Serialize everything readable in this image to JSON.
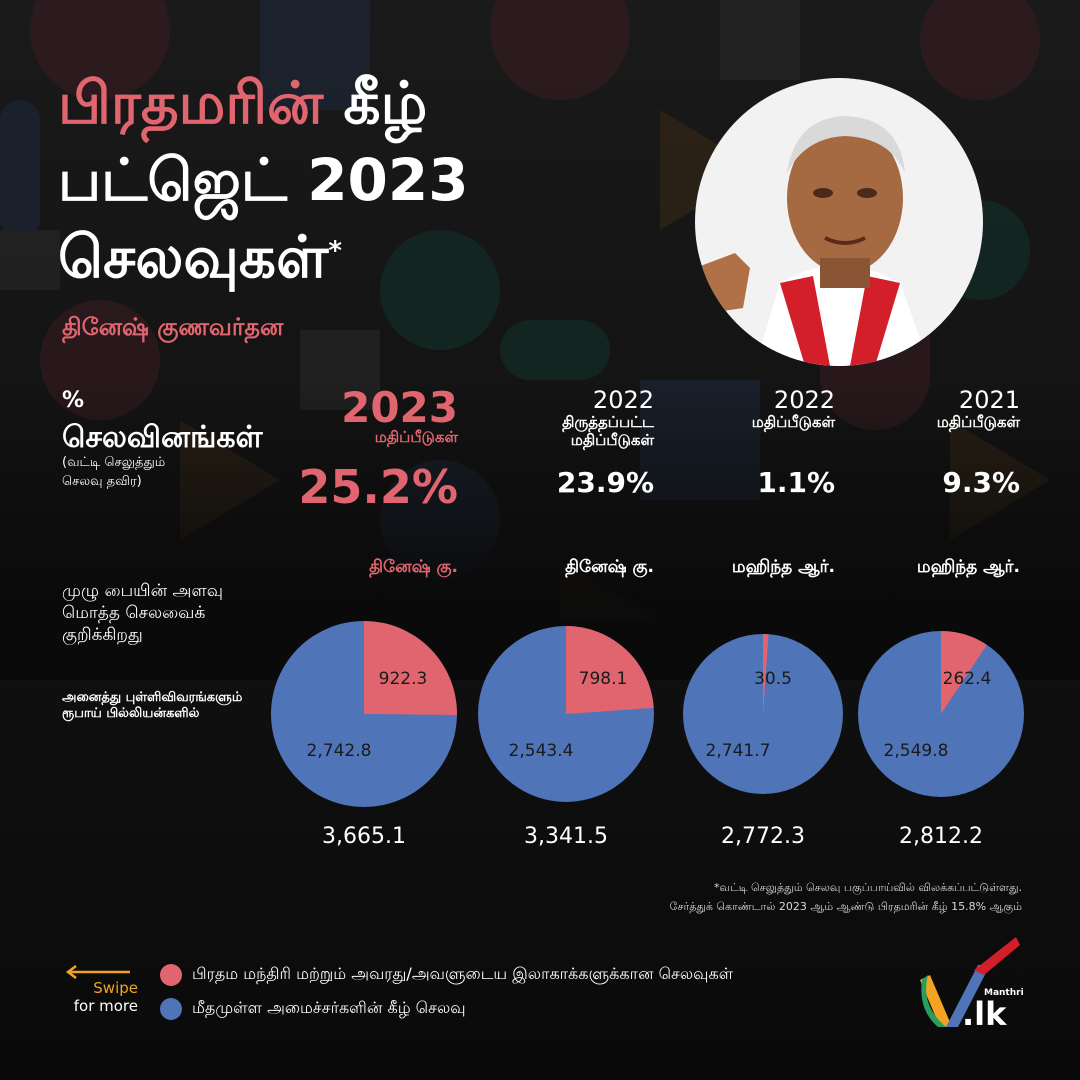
{
  "title": {
    "line1_accent": "பிரதமரின்",
    "line1_rest": " கீழ்",
    "line2": "பட்ஜெட் 2023",
    "line3": "செலவுகள்",
    "asterisk": "*"
  },
  "subtitle": "தினேஷ் குணவர்தன",
  "expenditure_label": {
    "percent_sign": "%",
    "label": "செலவினங்கள்",
    "note": "(வட்டி செலுத்தும் செலவு தவிர)"
  },
  "columns": [
    {
      "year": "2023",
      "sub": "மதிப்பீடுகள்",
      "pct": "25.2%",
      "pm": "தினேஷ் கு.",
      "total": "3,665.1"
    },
    {
      "year": "2022",
      "sub": "திருத்தப்பட்ட மதிப்பீடுகள்",
      "pct": "23.9%",
      "pm": "தினேஷ் கு.",
      "total": "3,341.5"
    },
    {
      "year": "2022",
      "sub": "மதிப்பீடுகள்",
      "pct": "1.1%",
      "pm": "மஹிந்த ஆர்.",
      "total": "2,772.3"
    },
    {
      "year": "2021",
      "sub": "மதிப்பீடுகள்",
      "pct": "9.3%",
      "pm": "மஹிந்த ஆர்.",
      "total": "2,812.2"
    }
  ],
  "pie_description": "முழு பையின் அளவு மொத்த செலவைக் குறிக்கிறது",
  "units_note": "அனைத்து புள்ளிவிவரங்களும் ரூபாய் பில்லியன்களில்",
  "footnote": {
    "line1": "*வட்டி செலுத்தும் செலவு பகுப்பாய்வில் விலக்கப்பட்டுள்ளது.",
    "line2": "சேர்த்துக் கொண்டால் 2023 ஆம் ஆண்டு பிரதமரின் கீழ் 15.8% ஆகும்"
  },
  "swipe": {
    "line1": "Swipe",
    "line2": "for more"
  },
  "legend": {
    "pm": "பிரதம மந்திரி மற்றும் அவரது/அவளுடைய இலாகாக்களுக்கான செலவுகள்",
    "other": "மீதமுள்ள அமைச்சர்களின் கீழ் செலவு"
  },
  "brand": {
    "small": "Manthri",
    "main": ".lk"
  },
  "colors": {
    "accent": "#e0656f",
    "pm_slice": "#e0656f",
    "other_slice": "#4f74b8",
    "swipe": "#f2a321"
  },
  "chart_data": {
    "type": "pie",
    "charts": [
      {
        "category": "2023 மதிப்பீடுகள்",
        "pm": 922.3,
        "other": 2742.8,
        "total": 3665.1
      },
      {
        "category": "2022 திருத்தப்பட்ட மதிப்பீடுகள்",
        "pm": 798.1,
        "other": 2543.4,
        "total": 3341.5
      },
      {
        "category": "2022 மதிப்பீடுகள்",
        "pm": 30.5,
        "other": 2741.7,
        "total": 2772.3
      },
      {
        "category": "2021 மதிப்பீடுகள்",
        "pm": 262.4,
        "other": 2549.8,
        "total": 2812.2
      }
    ],
    "series": [
      {
        "name": "பிரதம மந்திரி மற்றும் அவரது/அவளுடைய இலாகாக்களுக்கான செலவுகள்",
        "key": "pm"
      },
      {
        "name": "மீதமுள்ள அமைச்சர்களின் கீழ் செலவு",
        "key": "other"
      }
    ],
    "value_labels": [
      {
        "pm": "922.3",
        "other": "2,742.8"
      },
      {
        "pm": "798.1",
        "other": "2,543.4"
      },
      {
        "pm": "30.5",
        "other": "2,741.7"
      },
      {
        "pm": "262.4",
        "other": "2,549.8"
      }
    ]
  }
}
